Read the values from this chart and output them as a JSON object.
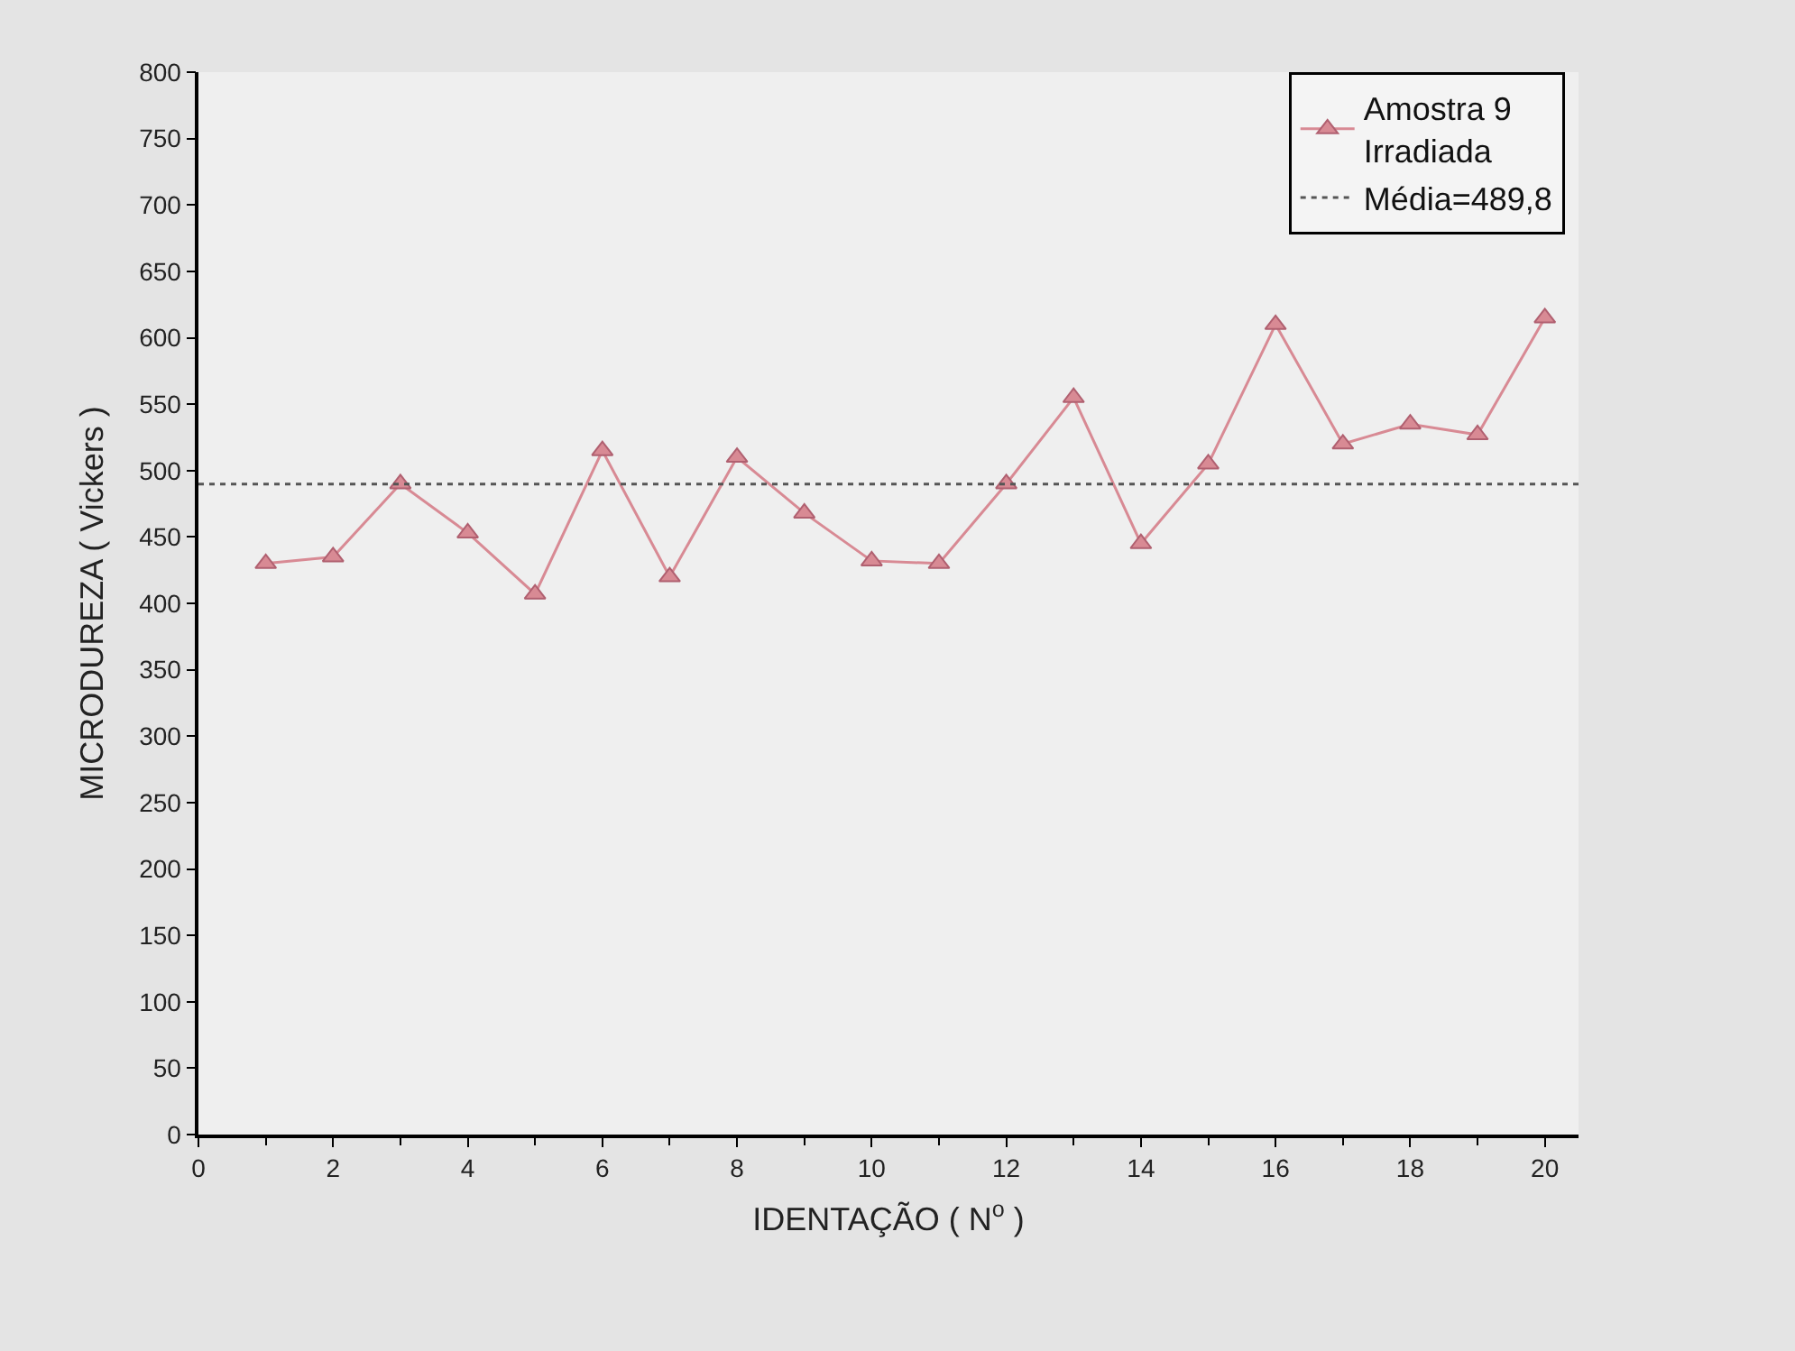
{
  "chart_data": {
    "type": "line",
    "xlabel": "IDENTAÇÃO ( N$^{o}$ )",
    "ylabel": "MICRODUREZA ( Vickers )",
    "x": [
      1,
      2,
      3,
      4,
      5,
      6,
      7,
      8,
      9,
      10,
      11,
      12,
      13,
      14,
      15,
      16,
      17,
      18,
      19,
      20
    ],
    "series": [
      {
        "name": "Amostra 9\nIrradiada",
        "color": "#d88a94",
        "values": [
          430,
          435,
          490,
          453,
          407,
          515,
          420,
          510,
          468,
          432,
          430,
          490,
          555,
          445,
          505,
          610,
          520,
          535,
          527,
          615
        ]
      }
    ],
    "xlim": [
      0,
      20.5
    ],
    "xticks": [
      0,
      2,
      4,
      6,
      8,
      10,
      12,
      14,
      16,
      18,
      20
    ],
    "ylim": [
      0,
      800
    ],
    "yticks": [
      0,
      50,
      100,
      150,
      200,
      250,
      300,
      350,
      400,
      450,
      500,
      550,
      600,
      650,
      700,
      750,
      800
    ],
    "ref_lines": [
      {
        "axis": "y",
        "value": 489.8,
        "label": "Média=489,8",
        "color": "#555555",
        "line_style": "dotted"
      }
    ],
    "marker": "triangle",
    "line_style": "solid",
    "grid": false,
    "legend": "top right"
  }
}
